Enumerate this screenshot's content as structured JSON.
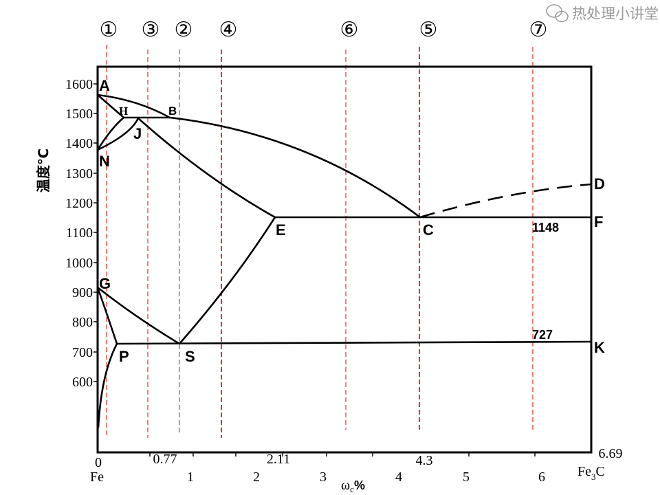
{
  "circle_labels": [
    "①",
    "③",
    "②",
    "④",
    "⑥",
    "⑤",
    "⑦"
  ],
  "y_axis": {
    "label": "温度℃",
    "ticks": [
      "1600",
      "1500",
      "1400",
      "1300",
      "1200",
      "1100",
      "1000",
      "900",
      "800",
      "700",
      "600"
    ]
  },
  "x_axis": {
    "label_main": "ω",
    "label_sub": "c",
    "label_pct": "%",
    "ticks": [
      "1",
      "2",
      "3",
      "4",
      "5",
      "6"
    ],
    "origin": "0",
    "left_end": "Fe",
    "right_end_main": "Fe",
    "right_end_sub": "3",
    "right_end_tail": "C",
    "special_values": [
      "0.77",
      "2.11",
      "4.3",
      "6.69"
    ]
  },
  "points": {
    "A": "A",
    "H": "H",
    "B": "B",
    "J": "J",
    "N": "N",
    "E": "E",
    "C": "C",
    "D": "D",
    "F": "F",
    "G": "G",
    "P": "P",
    "S": "S",
    "K": "K"
  },
  "annotations": {
    "eutectic_temp": "1148",
    "eutectoid_temp": "727"
  },
  "watermark": "热处理小讲堂",
  "colors": {
    "line": "#000000",
    "guide_red": "#e00000",
    "watermark": "#9a9a9a"
  }
}
